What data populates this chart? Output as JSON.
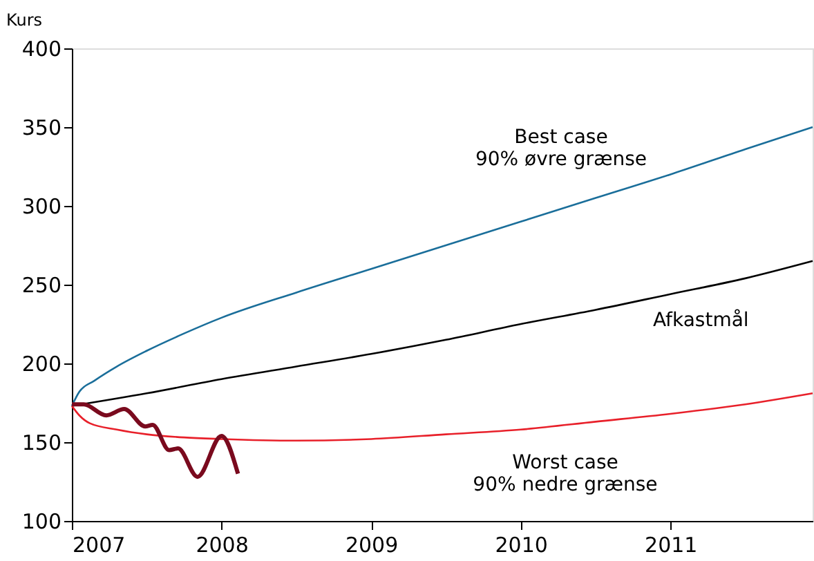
{
  "chart_data": {
    "type": "line",
    "ylabel": "Kurs",
    "xlim": [
      2007,
      2011.95
    ],
    "xticks": [
      {
        "value": 2007,
        "label": "2007"
      },
      {
        "value": 2008,
        "label": "2008"
      },
      {
        "value": 2009,
        "label": "2009"
      },
      {
        "value": 2010,
        "label": "2010"
      },
      {
        "value": 2011,
        "label": "2011"
      }
    ],
    "ylim": [
      100,
      400
    ],
    "yticks": [
      100,
      150,
      200,
      250,
      300,
      350,
      400
    ],
    "grid": false,
    "line_style": "solid",
    "marker": "none",
    "series": [
      {
        "name": "Best case\n90% øvre grænse",
        "color": "#1a6e9a",
        "x": [
          2007,
          2007.05,
          2007.15,
          2007.3,
          2007.5,
          2007.75,
          2008,
          2008.5,
          2009,
          2009.5,
          2010,
          2010.5,
          2011,
          2011.5,
          2011.95
        ],
        "values": [
          173,
          182,
          189,
          198,
          208,
          219,
          229,
          245,
          260,
          275,
          290,
          305,
          320,
          336,
          350
        ]
      },
      {
        "name": "Afkastmål",
        "color": "#000000",
        "x": [
          2007,
          2007.5,
          2008,
          2008.5,
          2009,
          2009.5,
          2010,
          2010.5,
          2011,
          2011.5,
          2011.95
        ],
        "values": [
          173,
          181,
          190,
          198,
          206,
          215,
          225,
          234,
          244,
          254,
          265
        ]
      },
      {
        "name": "Worst case\n90% nedre grænse",
        "color": "#e8202a",
        "x": [
          2007,
          2007.05,
          2007.12,
          2007.3,
          2007.5,
          2007.75,
          2008,
          2008.5,
          2009,
          2009.5,
          2010,
          2010.5,
          2011,
          2011.5,
          2011.95
        ],
        "values": [
          173,
          167,
          162,
          158,
          155,
          153,
          152,
          151,
          152,
          155,
          158,
          163,
          168,
          174,
          181
        ]
      },
      {
        "color": "#7a0a1e",
        "x": [
          2007,
          2007.08,
          2007.23,
          2007.35,
          2007.49,
          2007.54,
          2007.65,
          2007.71,
          2007.84,
          2008.0,
          2008.11
        ],
        "values": [
          174,
          174,
          167,
          171,
          160,
          161,
          145,
          146,
          128,
          154,
          130
        ]
      }
    ]
  }
}
